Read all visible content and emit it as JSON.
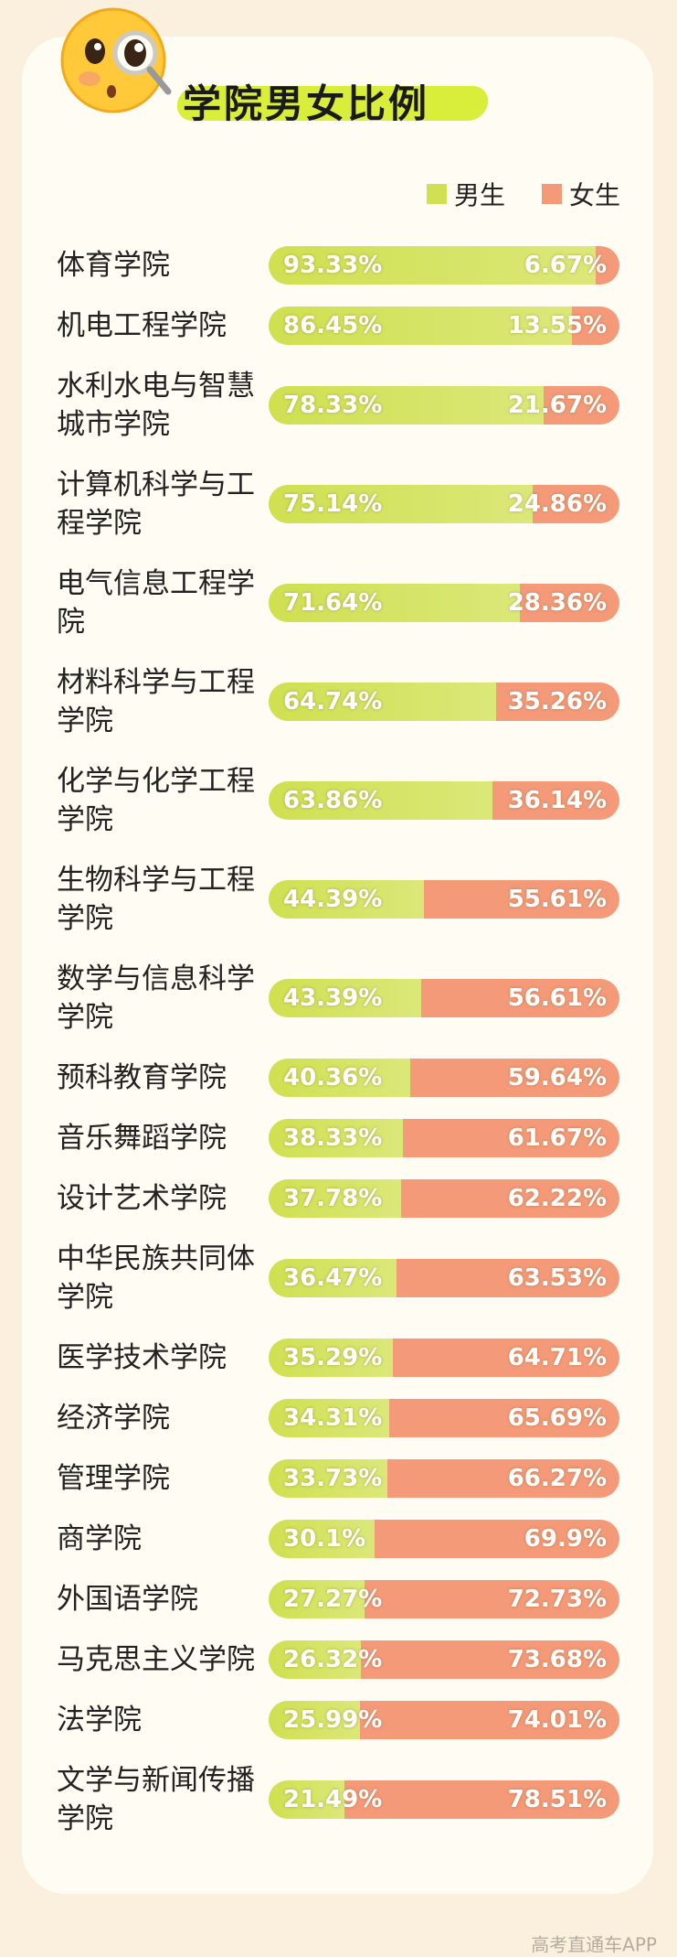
{
  "chart_data": {
    "type": "stacked-bar-100",
    "title": "学院男女比例",
    "categories": [
      "体育学院",
      "机电工程学院",
      "水利水电与智慧城市学院",
      "计算机科学与工程学院",
      "电气信息工程学院",
      "材料科学与工程学院",
      "化学与化学工程学院",
      "生物科学与工程学院",
      "数学与信息科学学院",
      "预科教育学院",
      "音乐舞蹈学院",
      "设计艺术学院",
      "中华民族共同体学院",
      "医学技术学院",
      "经济学院",
      "管理学院",
      "商学院",
      "外国语学院",
      "马克思主义学院",
      "法学院",
      "文学与新闻传播学院"
    ],
    "series": [
      {
        "name": "男生",
        "color": "#cfe050",
        "values": [
          93.33,
          86.45,
          78.33,
          75.14,
          71.64,
          64.74,
          63.86,
          44.39,
          43.39,
          40.36,
          38.33,
          37.78,
          36.47,
          35.29,
          34.31,
          33.73,
          30.1,
          27.27,
          26.32,
          25.99,
          21.49
        ],
        "value_labels": [
          "93.33%",
          "86.45%",
          "78.33%",
          "75.14%",
          "71.64%",
          "64.74%",
          "63.86%",
          "44.39%",
          "43.39%",
          "40.36%",
          "38.33%",
          "37.78%",
          "36.47%",
          "35.29%",
          "34.31%",
          "33.73%",
          "30.1%",
          "27.27%",
          "26.32%",
          "25.99%",
          "21.49%"
        ]
      },
      {
        "name": "女生",
        "color": "#f59a78",
        "values": [
          6.67,
          13.55,
          21.67,
          24.86,
          28.36,
          35.26,
          36.14,
          55.61,
          56.61,
          59.64,
          61.67,
          62.22,
          63.53,
          64.71,
          65.69,
          66.27,
          69.9,
          72.73,
          73.68,
          74.01,
          78.51
        ],
        "value_labels": [
          "6.67%",
          "13.55%",
          "21.67%",
          "24.86%",
          "28.36%",
          "35.26%",
          "36.14%",
          "55.61%",
          "56.61%",
          "59.64%",
          "61.67%",
          "62.22%",
          "63.53%",
          "64.71%",
          "65.69%",
          "66.27%",
          "69.9%",
          "72.73%",
          "73.68%",
          "74.01%",
          "78.51%"
        ]
      }
    ]
  },
  "watermark": "高考直通车APP"
}
